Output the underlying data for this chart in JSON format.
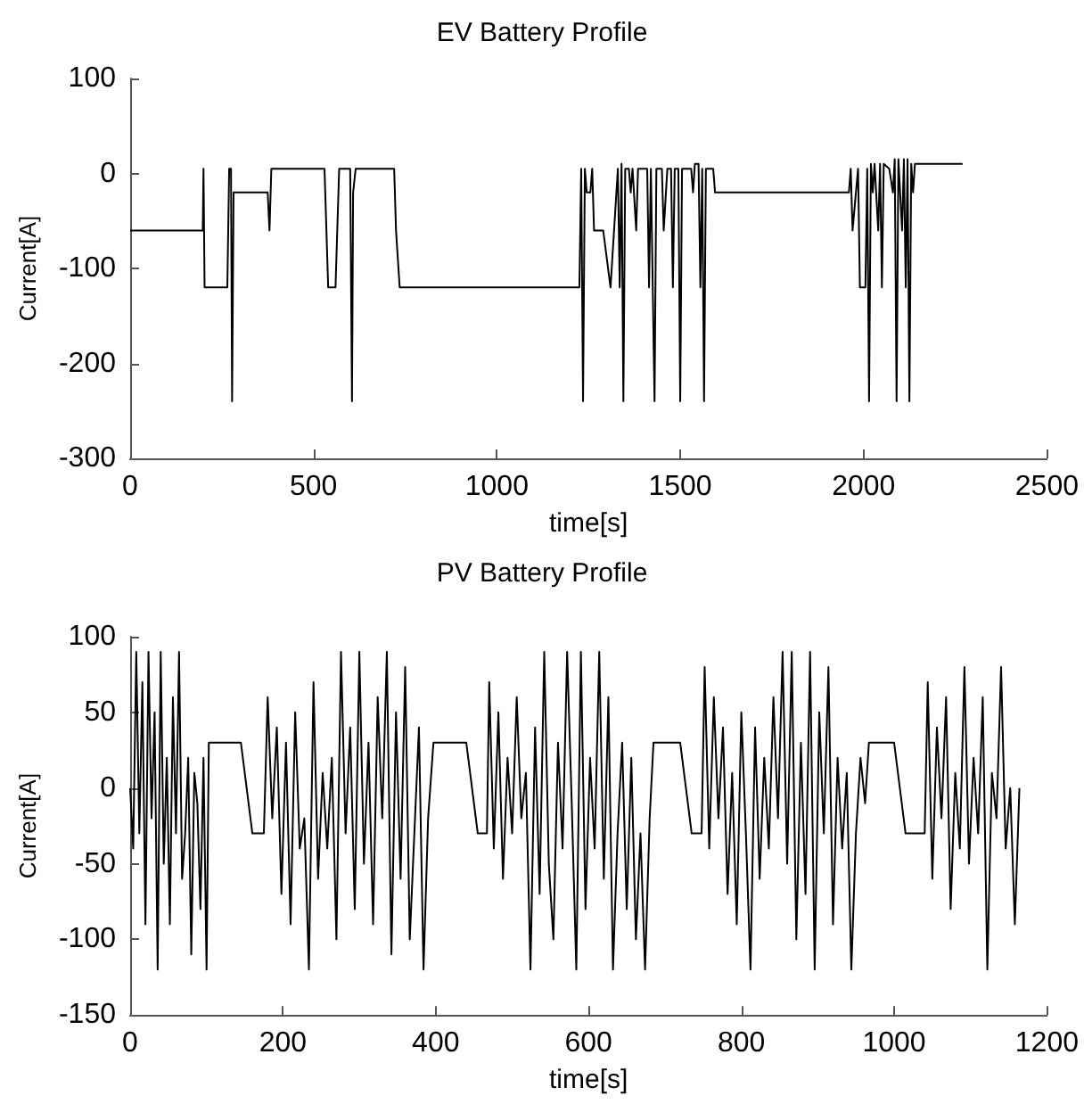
{
  "chart_data": [
    {
      "type": "line",
      "title": "EV Battery Profile",
      "xlabel": "time[s]",
      "ylabel": "Current[A]",
      "xlim": [
        0,
        2500
      ],
      "xticks": [
        0,
        500,
        1000,
        1500,
        2000,
        2500
      ],
      "ylim": [
        -300,
        100
      ],
      "yticks": [
        -300,
        -200,
        -100,
        0,
        100
      ],
      "marker": "none",
      "line_style": "solid",
      "series": [
        {
          "color": "#000000",
          "x": [
            0,
            198,
            200,
            203,
            265,
            270,
            275,
            278,
            282,
            375,
            380,
            385,
            530,
            540,
            560,
            570,
            600,
            605,
            608,
            615,
            720,
            725,
            735,
            1225,
            1230,
            1235,
            1240,
            1245,
            1255,
            1260,
            1265,
            1290,
            1310,
            1330,
            1335,
            1340,
            1345,
            1350,
            1360,
            1365,
            1370,
            1380,
            1385,
            1410,
            1415,
            1420,
            1430,
            1435,
            1450,
            1455,
            1465,
            1475,
            1480,
            1485,
            1495,
            1500,
            1505,
            1530,
            1535,
            1540,
            1550,
            1555,
            1560,
            1565,
            1570,
            1590,
            1595,
            1960,
            1965,
            1970,
            1985,
            1990,
            2005,
            2010,
            2015,
            2020,
            2025,
            2030,
            2040,
            2045,
            2050,
            2055,
            2070,
            2080,
            2085,
            2090,
            2095,
            2105,
            2110,
            2115,
            2120,
            2125,
            2130,
            2135,
            2140,
            2270
          ],
          "values": [
            -60,
            -60,
            5,
            -120,
            -120,
            5,
            5,
            -240,
            -20,
            -20,
            -60,
            5,
            5,
            -120,
            -120,
            5,
            5,
            -240,
            -20,
            5,
            5,
            -60,
            -120,
            -120,
            5,
            -240,
            5,
            -20,
            -20,
            5,
            -60,
            -60,
            -120,
            5,
            -120,
            10,
            -240,
            5,
            5,
            -20,
            5,
            -60,
            5,
            5,
            -120,
            5,
            -240,
            5,
            5,
            -60,
            5,
            5,
            -120,
            5,
            5,
            -240,
            5,
            5,
            -20,
            10,
            10,
            -120,
            5,
            -240,
            5,
            5,
            -20,
            -20,
            5,
            -60,
            5,
            -120,
            -120,
            5,
            -240,
            10,
            -20,
            10,
            -60,
            10,
            -120,
            10,
            5,
            -20,
            15,
            -240,
            15,
            -60,
            15,
            -120,
            15,
            -240,
            10,
            -20,
            10,
            10
          ]
        }
      ]
    },
    {
      "type": "line",
      "title": "PV Battery Profile",
      "xlabel": "time[s]",
      "ylabel": "Current[A]",
      "xlim": [
        0,
        1200
      ],
      "xticks": [
        0,
        200,
        400,
        600,
        800,
        1000,
        1200
      ],
      "ylim": [
        -150,
        100
      ],
      "yticks": [
        -150,
        -100,
        -50,
        0,
        50,
        100
      ],
      "marker": "none",
      "line_style": "solid",
      "series": [
        {
          "color": "#000000",
          "x": [
            0,
            4,
            8,
            12,
            16,
            20,
            24,
            28,
            32,
            36,
            40,
            44,
            48,
            52,
            56,
            60,
            64,
            68,
            72,
            76,
            80,
            84,
            88,
            92,
            96,
            100,
            103,
            145,
            160,
            175,
            180,
            186,
            192,
            198,
            204,
            210,
            216,
            222,
            228,
            234,
            240,
            246,
            252,
            258,
            264,
            270,
            276,
            282,
            288,
            294,
            300,
            306,
            312,
            318,
            324,
            330,
            336,
            342,
            348,
            354,
            360,
            366,
            372,
            378,
            384,
            390,
            397,
            440,
            455,
            467,
            470,
            476,
            482,
            488,
            494,
            500,
            506,
            512,
            518,
            524,
            530,
            536,
            542,
            548,
            554,
            560,
            566,
            572,
            578,
            584,
            590,
            596,
            602,
            608,
            614,
            620,
            626,
            632,
            638,
            644,
            650,
            656,
            662,
            668,
            674,
            680,
            685,
            720,
            735,
            748,
            752,
            758,
            764,
            770,
            776,
            782,
            788,
            794,
            800,
            806,
            812,
            818,
            824,
            830,
            836,
            842,
            848,
            854,
            860,
            866,
            872,
            878,
            884,
            890,
            896,
            902,
            908,
            914,
            920,
            926,
            932,
            938,
            944,
            950,
            956,
            962,
            967,
            1000,
            1015,
            1040,
            1044,
            1050,
            1056,
            1062,
            1068,
            1074,
            1080,
            1086,
            1092,
            1098,
            1104,
            1110,
            1116,
            1122,
            1128,
            1134,
            1140,
            1146,
            1152,
            1158,
            1164
          ],
          "values": [
            0,
            -40,
            90,
            -30,
            70,
            -90,
            90,
            -20,
            50,
            -120,
            90,
            -50,
            20,
            -90,
            60,
            -30,
            90,
            -60,
            -30,
            20,
            -110,
            10,
            -10,
            -80,
            20,
            -120,
            30,
            30,
            -30,
            -30,
            60,
            -20,
            40,
            -70,
            30,
            -90,
            50,
            -40,
            -20,
            -120,
            70,
            -60,
            10,
            -40,
            20,
            -100,
            90,
            -30,
            40,
            -80,
            90,
            -50,
            30,
            -90,
            60,
            -20,
            90,
            -110,
            50,
            -60,
            80,
            -100,
            -30,
            40,
            -120,
            -20,
            30,
            30,
            -30,
            -30,
            70,
            -40,
            50,
            -60,
            20,
            -30,
            60,
            -20,
            10,
            -120,
            40,
            -70,
            90,
            -50,
            -100,
            30,
            -40,
            90,
            -10,
            -120,
            90,
            -80,
            20,
            -40,
            90,
            -60,
            60,
            -120,
            -30,
            30,
            -80,
            20,
            -100,
            -30,
            -120,
            -20,
            30,
            30,
            -30,
            -30,
            80,
            -40,
            60,
            -20,
            40,
            -70,
            10,
            -90,
            50,
            -30,
            -120,
            40,
            -60,
            20,
            -40,
            60,
            -20,
            90,
            -50,
            90,
            -100,
            30,
            -70,
            90,
            -120,
            50,
            -30,
            80,
            -90,
            20,
            -40,
            10,
            -120,
            -30,
            20,
            -10,
            30,
            30,
            -30,
            -30,
            70,
            -60,
            40,
            -20,
            60,
            -80,
            10,
            -40,
            80,
            -50,
            20,
            -30,
            60,
            -120,
            10,
            -20,
            80,
            -40,
            0,
            -90,
            0
          ]
        }
      ]
    }
  ]
}
